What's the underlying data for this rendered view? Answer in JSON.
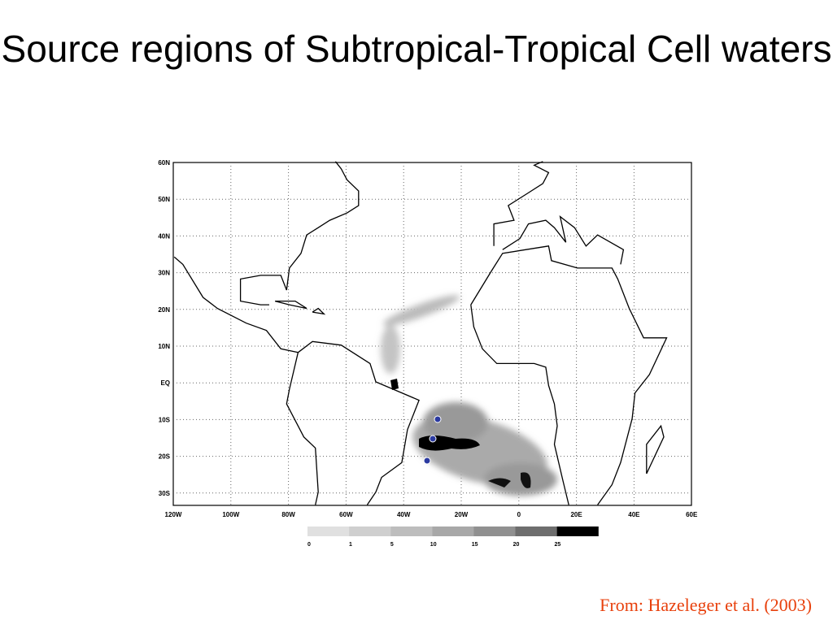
{
  "title": "Source regions of Subtropical-Tropical Cell waters",
  "map": {
    "lat_labels": [
      "60N",
      "50N",
      "40N",
      "30N",
      "20N",
      "10N",
      "EQ",
      "10S",
      "20S",
      "30S"
    ],
    "lon_labels": [
      "120W",
      "100W",
      "80W",
      "60W",
      "40W",
      "20W",
      "0",
      "20E",
      "40E",
      "60E"
    ],
    "colorbar_labels": [
      0,
      1,
      5,
      10,
      15,
      20,
      25
    ]
  },
  "citation": "From: Hazeleger et al. (2003)"
}
